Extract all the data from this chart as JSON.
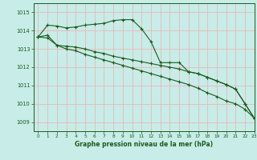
{
  "title": "Graphe pression niveau de la mer (hPa)",
  "background_color": "#c8ece8",
  "grid_color": "#e8b8b8",
  "line_color": "#1a5c1a",
  "xlim": [
    -0.5,
    23
  ],
  "ylim": [
    1008.5,
    1015.5
  ],
  "yticks": [
    1009,
    1010,
    1011,
    1012,
    1013,
    1014,
    1015
  ],
  "xticks": [
    0,
    1,
    2,
    3,
    4,
    5,
    6,
    7,
    8,
    9,
    10,
    11,
    12,
    13,
    14,
    15,
    16,
    17,
    18,
    19,
    20,
    21,
    22,
    23
  ],
  "series": [
    {
      "x": [
        0,
        1,
        2,
        3,
        4,
        5,
        6,
        7,
        8,
        9,
        10,
        11,
        12,
        13,
        14,
        15,
        16,
        17,
        18,
        19,
        20,
        21,
        22,
        23
      ],
      "y": [
        1013.65,
        1014.3,
        1014.25,
        1014.15,
        1014.2,
        1014.3,
        1014.35,
        1014.4,
        1014.55,
        1014.6,
        1014.6,
        1014.1,
        1013.4,
        1012.25,
        1012.25,
        1012.25,
        1011.75,
        1011.65,
        1011.45,
        1011.25,
        1011.05,
        1010.8,
        1010.0,
        1009.2
      ]
    },
    {
      "x": [
        0,
        1,
        2,
        3,
        4,
        5,
        6,
        7,
        8,
        9,
        10,
        11,
        12,
        13,
        14,
        15,
        16,
        17,
        18,
        19,
        20,
        21,
        22,
        23
      ],
      "y": [
        1013.65,
        1013.75,
        1013.2,
        1013.15,
        1013.1,
        1013.0,
        1012.85,
        1012.75,
        1012.6,
        1012.5,
        1012.4,
        1012.3,
        1012.2,
        1012.1,
        1012.0,
        1011.9,
        1011.75,
        1011.65,
        1011.45,
        1011.25,
        1011.05,
        1010.8,
        1010.0,
        1009.2
      ]
    },
    {
      "x": [
        0,
        1,
        2,
        3,
        4,
        5,
        6,
        7,
        8,
        9,
        10,
        11,
        12,
        13,
        14,
        15,
        16,
        17,
        18,
        19,
        20,
        21,
        22,
        23
      ],
      "y": [
        1013.65,
        1013.6,
        1013.2,
        1013.0,
        1012.9,
        1012.7,
        1012.55,
        1012.4,
        1012.25,
        1012.1,
        1011.95,
        1011.8,
        1011.65,
        1011.5,
        1011.35,
        1011.2,
        1011.05,
        1010.85,
        1010.6,
        1010.4,
        1010.15,
        1010.0,
        1009.7,
        1009.2
      ]
    }
  ]
}
